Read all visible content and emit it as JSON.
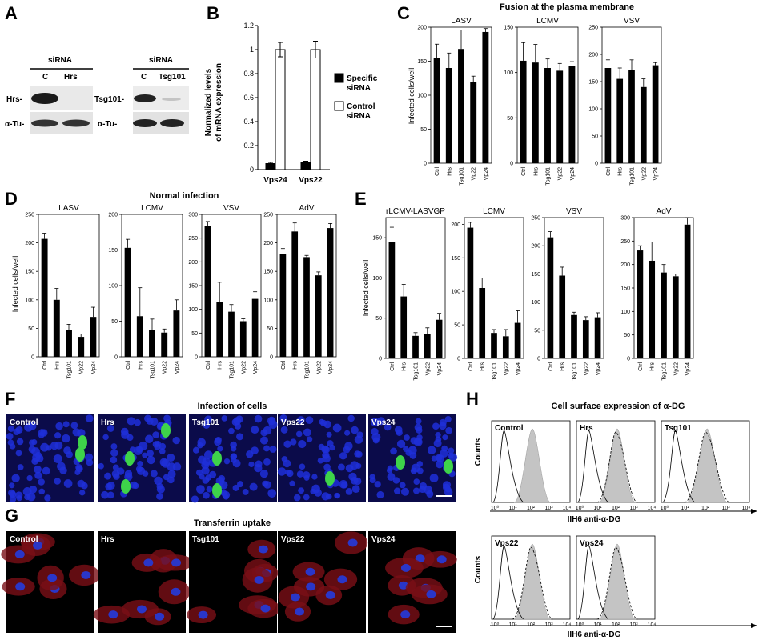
{
  "panel_letters": [
    "A",
    "B",
    "C",
    "D",
    "E",
    "F",
    "G",
    "H"
  ],
  "panelA": {
    "blots": [
      {
        "header": "siRNA",
        "lanes": [
          "C",
          "Hrs"
        ],
        "target": "Hrs-",
        "control": "α-Tu-"
      },
      {
        "header": "siRNA",
        "lanes": [
          "C",
          "Tsg101"
        ],
        "target": "Tsg101-",
        "control": "α-Tu-"
      }
    ]
  },
  "panelB": {
    "ylabel_line1": "Normalized levels",
    "ylabel_line2": "of mRNA expression",
    "legend": [
      {
        "label_line1": "Specific",
        "label_line2": "siRNA",
        "color": "#000000"
      },
      {
        "label_line1": "Control",
        "label_line2": "siRNA",
        "color": "#ffffff"
      }
    ]
  },
  "panelC": {
    "title": "Fusion at the plasma membrane",
    "ylabel": "Infected cells/well"
  },
  "panelD": {
    "title": "Normal infection",
    "ylabel": "Infected cells/well"
  },
  "panelE": {
    "ylabel": "Infected cells/well"
  },
  "panelF": {
    "title": "Infection of cells",
    "labels": [
      "Control",
      "Hrs",
      "Tsg101",
      "Vps22",
      "Vps24"
    ]
  },
  "panelG": {
    "title": "Transferrin uptake",
    "labels": [
      "Control",
      "Hrs",
      "Tsg101",
      "Vps22",
      "Vps24"
    ]
  },
  "panelH": {
    "title": "Cell surface expression of α-DG",
    "ylabel": "Counts",
    "xlabel": "IIH6 anti-α-DG",
    "labels": [
      "Control",
      "Hrs",
      "Tsg101",
      "Vps22",
      "Vps24"
    ],
    "xticks": [
      "10⁰",
      "10¹",
      "10²",
      "10³",
      "10⁴"
    ]
  },
  "chart_data": [
    {
      "id": "B",
      "type": "bar",
      "categories": [
        "Vps24",
        "Vps22"
      ],
      "series": [
        {
          "name": "Specific siRNA",
          "values": [
            0.05,
            0.06
          ],
          "err": [
            0.01,
            0.01
          ]
        },
        {
          "name": "Control siRNA",
          "values": [
            1.0,
            1.0
          ],
          "err": [
            0.06,
            0.07
          ]
        }
      ],
      "ylim": [
        0,
        1.2
      ],
      "yticks": [
        0,
        0.2,
        0.4,
        0.6,
        0.8,
        1,
        1.2
      ],
      "ytick_labels": [
        "0",
        "0.2",
        "0.4",
        "0.6",
        "0.8",
        "1",
        "1.2"
      ]
    },
    {
      "id": "C1",
      "type": "bar",
      "title": "LASV",
      "categories": [
        "Ctrl",
        "Hrs",
        "Tsg101",
        "Vp22",
        "Vp24"
      ],
      "values": [
        155,
        140,
        168,
        120,
        193
      ],
      "err": [
        20,
        22,
        28,
        8,
        5
      ],
      "ylim": [
        0,
        200
      ],
      "yticks": [
        0,
        50,
        100,
        150,
        200
      ]
    },
    {
      "id": "C2",
      "type": "bar",
      "title": "LCMV",
      "categories": [
        "Ctrl",
        "Hrs",
        "Tsg101",
        "Vp22",
        "Vp24"
      ],
      "values": [
        113,
        111,
        105,
        102,
        107
      ],
      "err": [
        20,
        20,
        10,
        8,
        5
      ],
      "ylim": [
        0,
        150
      ],
      "yticks": [
        0,
        50,
        100,
        150
      ]
    },
    {
      "id": "C3",
      "type": "bar",
      "title": "VSV",
      "categories": [
        "Ctrl",
        "Hrs",
        "Tsg101",
        "Vp22",
        "Vp24"
      ],
      "values": [
        175,
        155,
        172,
        140,
        180
      ],
      "err": [
        15,
        20,
        18,
        15,
        5
      ],
      "ylim": [
        0,
        250
      ],
      "yticks": [
        0,
        50,
        100,
        150,
        200,
        250
      ]
    },
    {
      "id": "D1",
      "type": "bar",
      "title": "LASV",
      "categories": [
        "Ctrl",
        "Hrs",
        "Tsg101",
        "Vp22",
        "Vp24"
      ],
      "values": [
        207,
        100,
        47,
        35,
        70
      ],
      "err": [
        10,
        20,
        10,
        5,
        17
      ],
      "ylim": [
        0,
        250
      ],
      "yticks": [
        0,
        50,
        100,
        150,
        200,
        250
      ]
    },
    {
      "id": "D2",
      "type": "bar",
      "title": "LCMV",
      "categories": [
        "Ctrl",
        "Hrs",
        "Tsg101",
        "Vp22",
        "Vp24"
      ],
      "values": [
        153,
        57,
        38,
        34,
        65
      ],
      "err": [
        12,
        40,
        15,
        5,
        15
      ],
      "ylim": [
        0,
        200
      ],
      "yticks": [
        0,
        50,
        100,
        150,
        200
      ]
    },
    {
      "id": "D3",
      "type": "bar",
      "title": "VSV",
      "categories": [
        "Ctrl",
        "Hrs",
        "Tsg101",
        "Vp22",
        "Vp24"
      ],
      "values": [
        275,
        115,
        95,
        75,
        122
      ],
      "err": [
        10,
        42,
        15,
        5,
        15
      ],
      "ylim": [
        0,
        300
      ],
      "yticks": [
        0,
        50,
        100,
        150,
        200,
        250,
        300
      ]
    },
    {
      "id": "D4",
      "type": "bar",
      "title": "AdV",
      "categories": [
        "Ctrl",
        "Hrs",
        "Tsg101",
        "Vp22",
        "Vp24"
      ],
      "values": [
        180,
        220,
        175,
        143,
        226
      ],
      "err": [
        10,
        15,
        3,
        6,
        8
      ],
      "ylim": [
        0,
        250
      ],
      "yticks": [
        0,
        50,
        100,
        150,
        200,
        250
      ]
    },
    {
      "id": "E1",
      "type": "bar",
      "title": "rLCMV-LASVGP",
      "categories": [
        "Ctrl",
        "Hrs",
        "Tsg101",
        "Vp22",
        "Vp24"
      ],
      "values": [
        145,
        77,
        28,
        30,
        48
      ],
      "err": [
        18,
        15,
        4,
        8,
        8
      ],
      "ylim": [
        0,
        175
      ],
      "yticks": [
        0,
        50,
        100,
        150
      ]
    },
    {
      "id": "E2",
      "type": "bar",
      "title": "LCMV",
      "categories": [
        "Ctrl",
        "Hrs",
        "Tsg101",
        "Vp22",
        "Vp24"
      ],
      "values": [
        195,
        105,
        38,
        33,
        53
      ],
      "err": [
        8,
        15,
        5,
        10,
        18
      ],
      "ylim": [
        0,
        210
      ],
      "yticks": [
        0,
        50,
        100,
        150,
        200
      ]
    },
    {
      "id": "E3",
      "type": "bar",
      "title": "VSV",
      "categories": [
        "Ctrl",
        "Hrs",
        "Tsg101",
        "Vp22",
        "Vp24"
      ],
      "values": [
        215,
        147,
        77,
        68,
        73
      ],
      "err": [
        10,
        15,
        5,
        6,
        8
      ],
      "ylim": [
        0,
        250
      ],
      "yticks": [
        0,
        50,
        100,
        150,
        200,
        250
      ]
    },
    {
      "id": "E4",
      "type": "bar",
      "title": "AdV",
      "categories": [
        "Ctrl",
        "Hrs",
        "Tsg101",
        "Vp22",
        "Vp24"
      ],
      "values": [
        230,
        208,
        183,
        175,
        285
      ],
      "err": [
        10,
        40,
        17,
        5,
        15
      ],
      "ylim": [
        0,
        300
      ],
      "yticks": [
        0,
        50,
        100,
        150,
        200,
        250,
        300
      ]
    }
  ]
}
